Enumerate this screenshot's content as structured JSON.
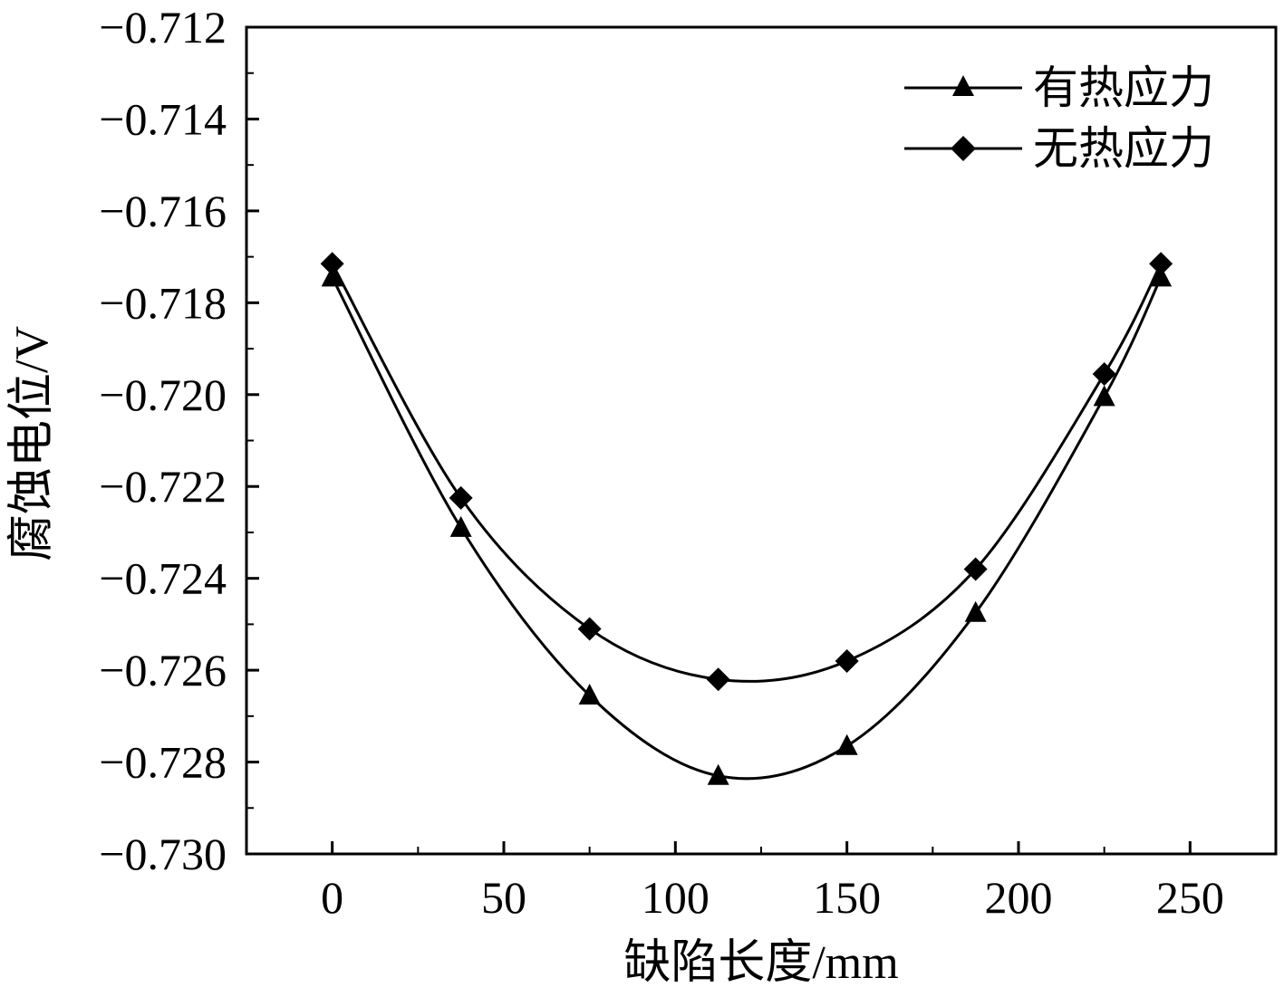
{
  "chart_data": {
    "type": "line",
    "xlabel": "缺陷长度/mm",
    "ylabel": "腐蚀电位/V",
    "xlim": [
      -25,
      275
    ],
    "ylim": [
      -0.73,
      -0.712
    ],
    "x_ticks": [
      0,
      50,
      100,
      150,
      200,
      250
    ],
    "x_tick_labels": [
      "0",
      "50",
      "100",
      "150",
      "200",
      "250"
    ],
    "y_ticks": [
      -0.73,
      -0.728,
      -0.726,
      -0.724,
      -0.722,
      -0.72,
      -0.718,
      -0.716,
      -0.714,
      -0.712
    ],
    "y_tick_labels": [
      "−0.730",
      "−0.728",
      "−0.726",
      "−0.724",
      "−0.722",
      "−0.720",
      "−0.718",
      "−0.716",
      "−0.714",
      "−0.712"
    ],
    "grid": false,
    "legend_position": "top-right",
    "series": [
      {
        "name": "有热应力",
        "marker": "triangle",
        "color": "#000000",
        "x": [
          0,
          37.5,
          75,
          112.5,
          150,
          187.5,
          225,
          241.5
        ],
        "y": [
          -0.71745,
          -0.7229,
          -0.72655,
          -0.7283,
          -0.72765,
          -0.72475,
          -0.72005,
          -0.71745
        ]
      },
      {
        "name": "无热应力",
        "marker": "diamond",
        "color": "#000000",
        "x": [
          0,
          37.5,
          75,
          112.5,
          150,
          187.5,
          225,
          241.5
        ],
        "y": [
          -0.71715,
          -0.72225,
          -0.7251,
          -0.7262,
          -0.7258,
          -0.7238,
          -0.71955,
          -0.71715
        ]
      }
    ]
  }
}
